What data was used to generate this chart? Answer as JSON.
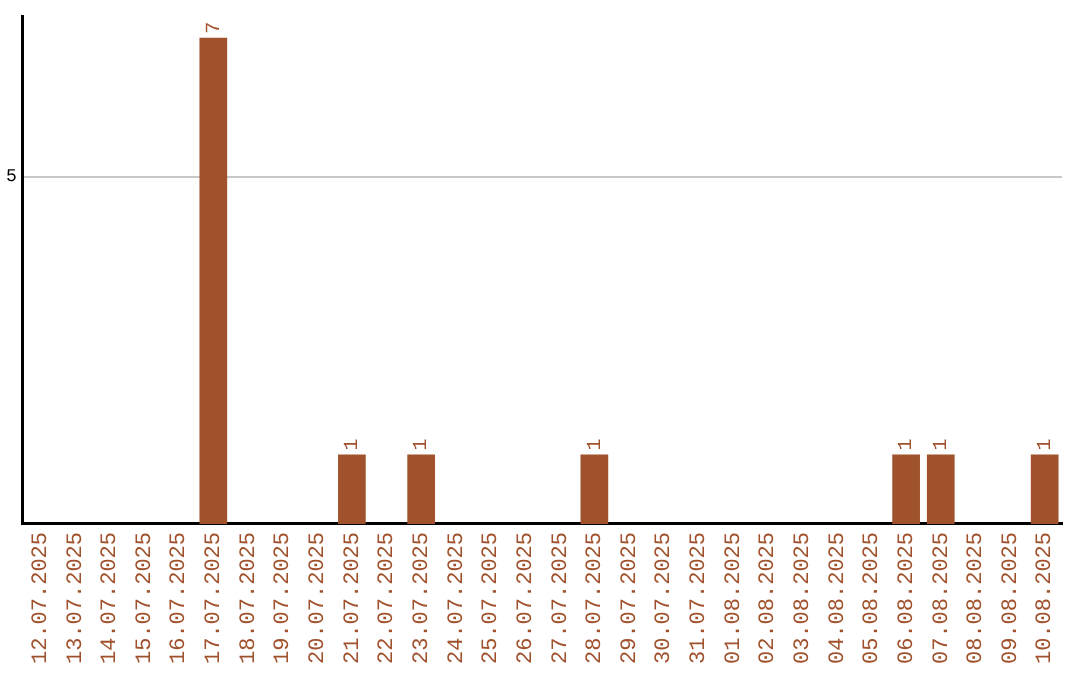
{
  "chart_data": {
    "type": "bar",
    "categories": [
      "12.07.2025",
      "13.07.2025",
      "14.07.2025",
      "15.07.2025",
      "16.07.2025",
      "17.07.2025",
      "18.07.2025",
      "19.07.2025",
      "20.07.2025",
      "21.07.2025",
      "22.07.2025",
      "23.07.2025",
      "24.07.2025",
      "25.07.2025",
      "26.07.2025",
      "27.07.2025",
      "28.07.2025",
      "29.07.2025",
      "30.07.2025",
      "31.07.2025",
      "01.08.2025",
      "02.08.2025",
      "03.08.2025",
      "04.08.2025",
      "05.08.2025",
      "06.08.2025",
      "07.08.2025",
      "08.08.2025",
      "09.08.2025",
      "10.08.2025"
    ],
    "values": [
      0,
      0,
      0,
      0,
      0,
      7,
      0,
      0,
      0,
      1,
      0,
      1,
      0,
      0,
      0,
      0,
      1,
      0,
      0,
      0,
      0,
      0,
      0,
      0,
      0,
      1,
      1,
      0,
      0,
      1
    ],
    "value_labels": [
      null,
      null,
      null,
      null,
      null,
      "7",
      null,
      null,
      null,
      "1",
      null,
      "1",
      null,
      null,
      null,
      null,
      "1",
      null,
      null,
      null,
      null,
      null,
      null,
      null,
      null,
      "1",
      "1",
      null,
      null,
      "1"
    ],
    "color": "#a0522d",
    "ylim": [
      0,
      7.3
    ],
    "yticks": [
      5
    ],
    "grid": "y",
    "legend": false
  }
}
